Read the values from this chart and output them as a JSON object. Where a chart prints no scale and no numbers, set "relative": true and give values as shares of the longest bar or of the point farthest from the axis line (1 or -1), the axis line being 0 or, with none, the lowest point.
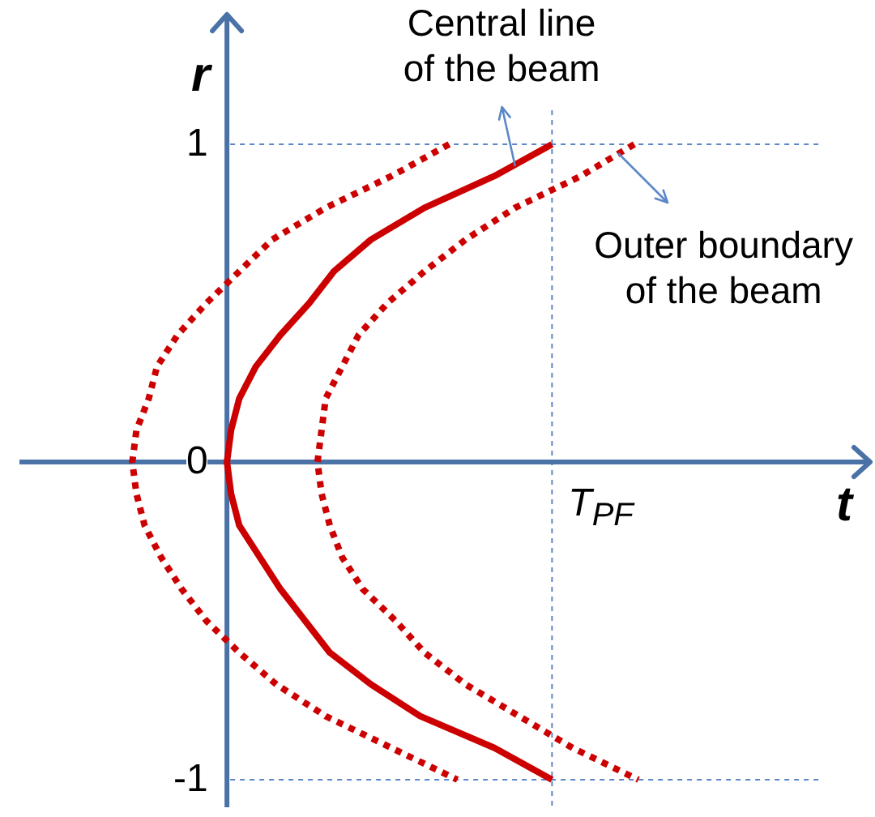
{
  "chart_data": {
    "type": "line",
    "orientation": "horizontal",
    "relative": true,
    "xlabel": "t",
    "ylabel": "r",
    "categories": [
      "1",
      null,
      null,
      null,
      null,
      null,
      null,
      null,
      null,
      null,
      "0",
      null,
      null,
      null,
      null,
      null,
      null,
      null,
      null,
      null,
      "-1"
    ],
    "series": [
      {
        "color": "#cc0000",
        "line_style": "solid",
        "values": [
          0.79,
          0.65,
          0.48,
          0.35,
          0.26,
          0.2,
          0.13,
          0.07,
          0.03,
          0.01,
          0,
          0.01,
          0.03,
          0.08,
          0.13,
          0.19,
          0.25,
          0.35,
          0.47,
          0.65,
          0.79
        ]
      },
      {
        "color": "#cc0000",
        "line_style": "dotted",
        "values": [
          0.54,
          0.4,
          0.24,
          0.11,
          0.03,
          -0.05,
          -0.12,
          -0.17,
          -0.19,
          -0.22,
          -0.23,
          -0.22,
          -0.2,
          -0.16,
          -0.11,
          -0.05,
          0.03,
          0.12,
          0.24,
          0.4,
          0.56
        ]
      },
      {
        "color": "#cc0000",
        "line_style": "dotted",
        "values": [
          0.99,
          0.86,
          0.7,
          0.58,
          0.48,
          0.39,
          0.32,
          0.28,
          0.24,
          0.23,
          0.22,
          0.23,
          0.25,
          0.28,
          0.33,
          0.41,
          0.48,
          0.58,
          0.71,
          0.84,
          1
        ]
      }
    ],
    "ref_lines": [
      {
        "axis": "x",
        "value": 0.79,
        "label": "T$_{PF}$",
        "color": "#5b87c8",
        "line_style": "dashed"
      },
      {
        "axis": "y",
        "value": "0",
        "color": "#4a72a6",
        "line_style": "solid"
      }
    ],
    "annotations": [
      "Central line of the beam",
      "Outer boundary of the beam"
    ],
    "grid": "y",
    "marker": "none"
  }
}
